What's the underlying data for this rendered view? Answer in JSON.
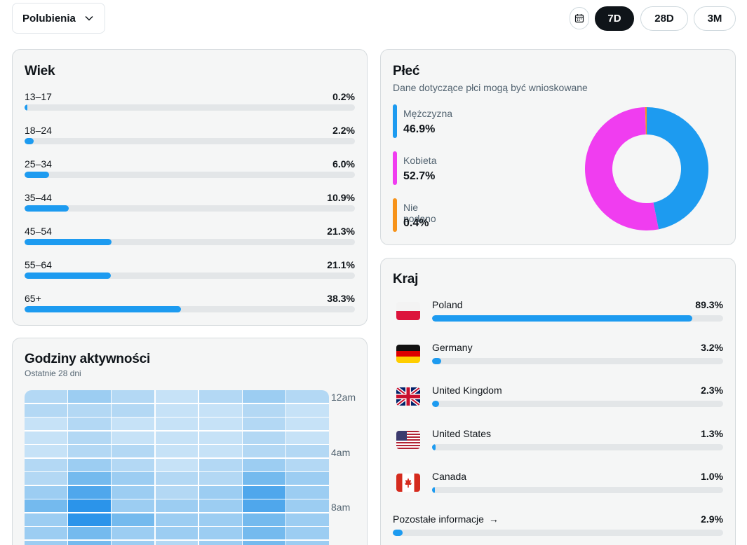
{
  "toolbar": {
    "metric_label": "Polubienia",
    "ranges": [
      "7D",
      "28D",
      "3M"
    ],
    "active_range": "7D"
  },
  "age": {
    "title": "Wiek",
    "rows": [
      {
        "label": "13–17",
        "pct": "0.2%",
        "value": 0.2
      },
      {
        "label": "18–24",
        "pct": "2.2%",
        "value": 2.2
      },
      {
        "label": "25–34",
        "pct": "6.0%",
        "value": 6.0
      },
      {
        "label": "35–44",
        "pct": "10.9%",
        "value": 10.9
      },
      {
        "label": "45–54",
        "pct": "21.3%",
        "value": 21.3
      },
      {
        "label": "55–64",
        "pct": "21.1%",
        "value": 21.1
      },
      {
        "label": "65+",
        "pct": "38.3%",
        "value": 38.3
      }
    ]
  },
  "gender": {
    "title": "Płeć",
    "subtitle": "Dane dotyczące płci mogą być wnioskowane",
    "items": [
      {
        "label": "Mężczyzna",
        "pct": "46.9%",
        "value": 46.9,
        "color": "#1d9bf0"
      },
      {
        "label": "Kobieta",
        "pct": "52.7%",
        "value": 52.7,
        "color": "#f03df0"
      },
      {
        "label": "Nie podano",
        "pct": "0.4%",
        "value": 0.4,
        "color": "#f7931a"
      }
    ]
  },
  "country": {
    "title": "Kraj",
    "rows": [
      {
        "name": "Poland",
        "pct": "89.3%",
        "value": 89.3,
        "flag": "pl-flag-icon"
      },
      {
        "name": "Germany",
        "pct": "3.2%",
        "value": 3.2,
        "flag": "de-flag-icon"
      },
      {
        "name": "United Kingdom",
        "pct": "2.3%",
        "value": 2.3,
        "flag": "uk-flag-icon"
      },
      {
        "name": "United States",
        "pct": "1.3%",
        "value": 1.3,
        "flag": "us-flag-icon"
      },
      {
        "name": "Canada",
        "pct": "1.0%",
        "value": 1.0,
        "flag": "ca-flag-icon"
      }
    ],
    "more_label": "Pozostałe informacje",
    "more_arrow": "→",
    "more_pct": "2.9%",
    "more_value": 2.9
  },
  "activity": {
    "title": "Godziny aktywności",
    "subtitle": "Ostatnie 28 dni",
    "hour_labels": [
      "12am",
      "4am",
      "8am"
    ],
    "intensity": [
      [
        2,
        3,
        2,
        1,
        2,
        3,
        2
      ],
      [
        2,
        2,
        2,
        1,
        1,
        2,
        1
      ],
      [
        1,
        2,
        1,
        1,
        1,
        2,
        1
      ],
      [
        1,
        2,
        1,
        1,
        1,
        2,
        1
      ],
      [
        1,
        2,
        2,
        1,
        1,
        2,
        2
      ],
      [
        2,
        3,
        2,
        1,
        2,
        3,
        2
      ],
      [
        2,
        4,
        3,
        2,
        2,
        4,
        3
      ],
      [
        3,
        5,
        3,
        2,
        3,
        5,
        3
      ],
      [
        4,
        6,
        3,
        3,
        3,
        5,
        3
      ],
      [
        3,
        6,
        4,
        3,
        3,
        4,
        3
      ],
      [
        3,
        4,
        3,
        3,
        3,
        4,
        3
      ],
      [
        3,
        4,
        3,
        2,
        3,
        4,
        3
      ]
    ]
  }
}
